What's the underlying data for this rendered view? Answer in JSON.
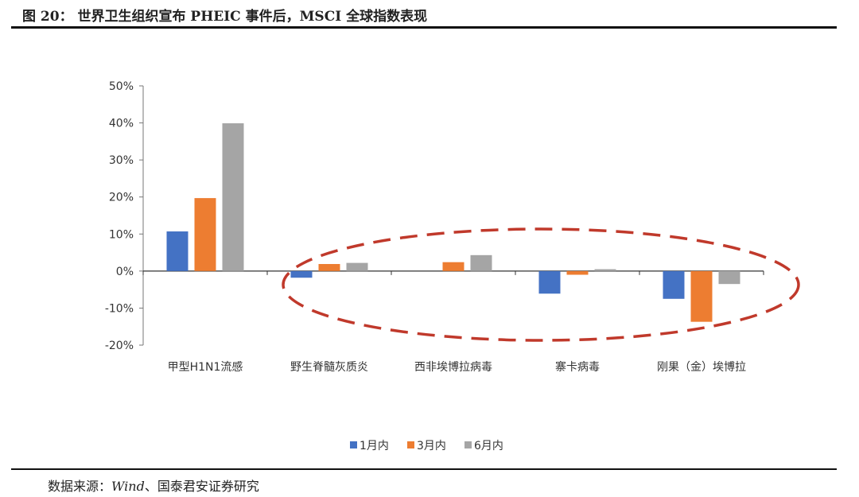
{
  "header": {
    "title": "图 20：  世界卫生组织宣布 PHEIC 事件后，MSCI 全球指数表现"
  },
  "footer": {
    "source_prefix": "数据来源：",
    "source_italic": "Wind",
    "source_suffix": "、国泰君安证券研究"
  },
  "chart_data": {
    "type": "bar",
    "title": "",
    "xlabel": "",
    "ylabel": "",
    "ylim": [
      -20,
      50
    ],
    "yticks": [
      "-20%",
      "-10%",
      "0%",
      "10%",
      "20%",
      "30%",
      "40%",
      "50%"
    ],
    "categories": [
      "甲型H1N1流感",
      "野生脊髓灰质炎",
      "西非埃博拉病毒",
      "寨卡病毒",
      "刚果（金）埃博拉"
    ],
    "series": [
      {
        "name": "1月内",
        "color": "#4472C4",
        "values": [
          10.7,
          -1.8,
          0.0,
          -6.1,
          -7.5
        ]
      },
      {
        "name": "3月内",
        "color": "#ED7D31",
        "values": [
          19.7,
          1.9,
          2.4,
          -1.0,
          -13.7
        ]
      },
      {
        "name": "6月内",
        "color": "#A5A5A5",
        "values": [
          39.9,
          2.2,
          4.3,
          0.5,
          -3.5
        ]
      }
    ],
    "unit": "%",
    "grid": false,
    "legend_position": "bottom",
    "annotation": {
      "shape": "dashed-ellipse",
      "color": "#C0392B",
      "encloses": [
        "野生脊髓灰质炎",
        "西非埃博拉病毒",
        "寨卡病毒",
        "刚果（金）埃博拉"
      ]
    }
  }
}
